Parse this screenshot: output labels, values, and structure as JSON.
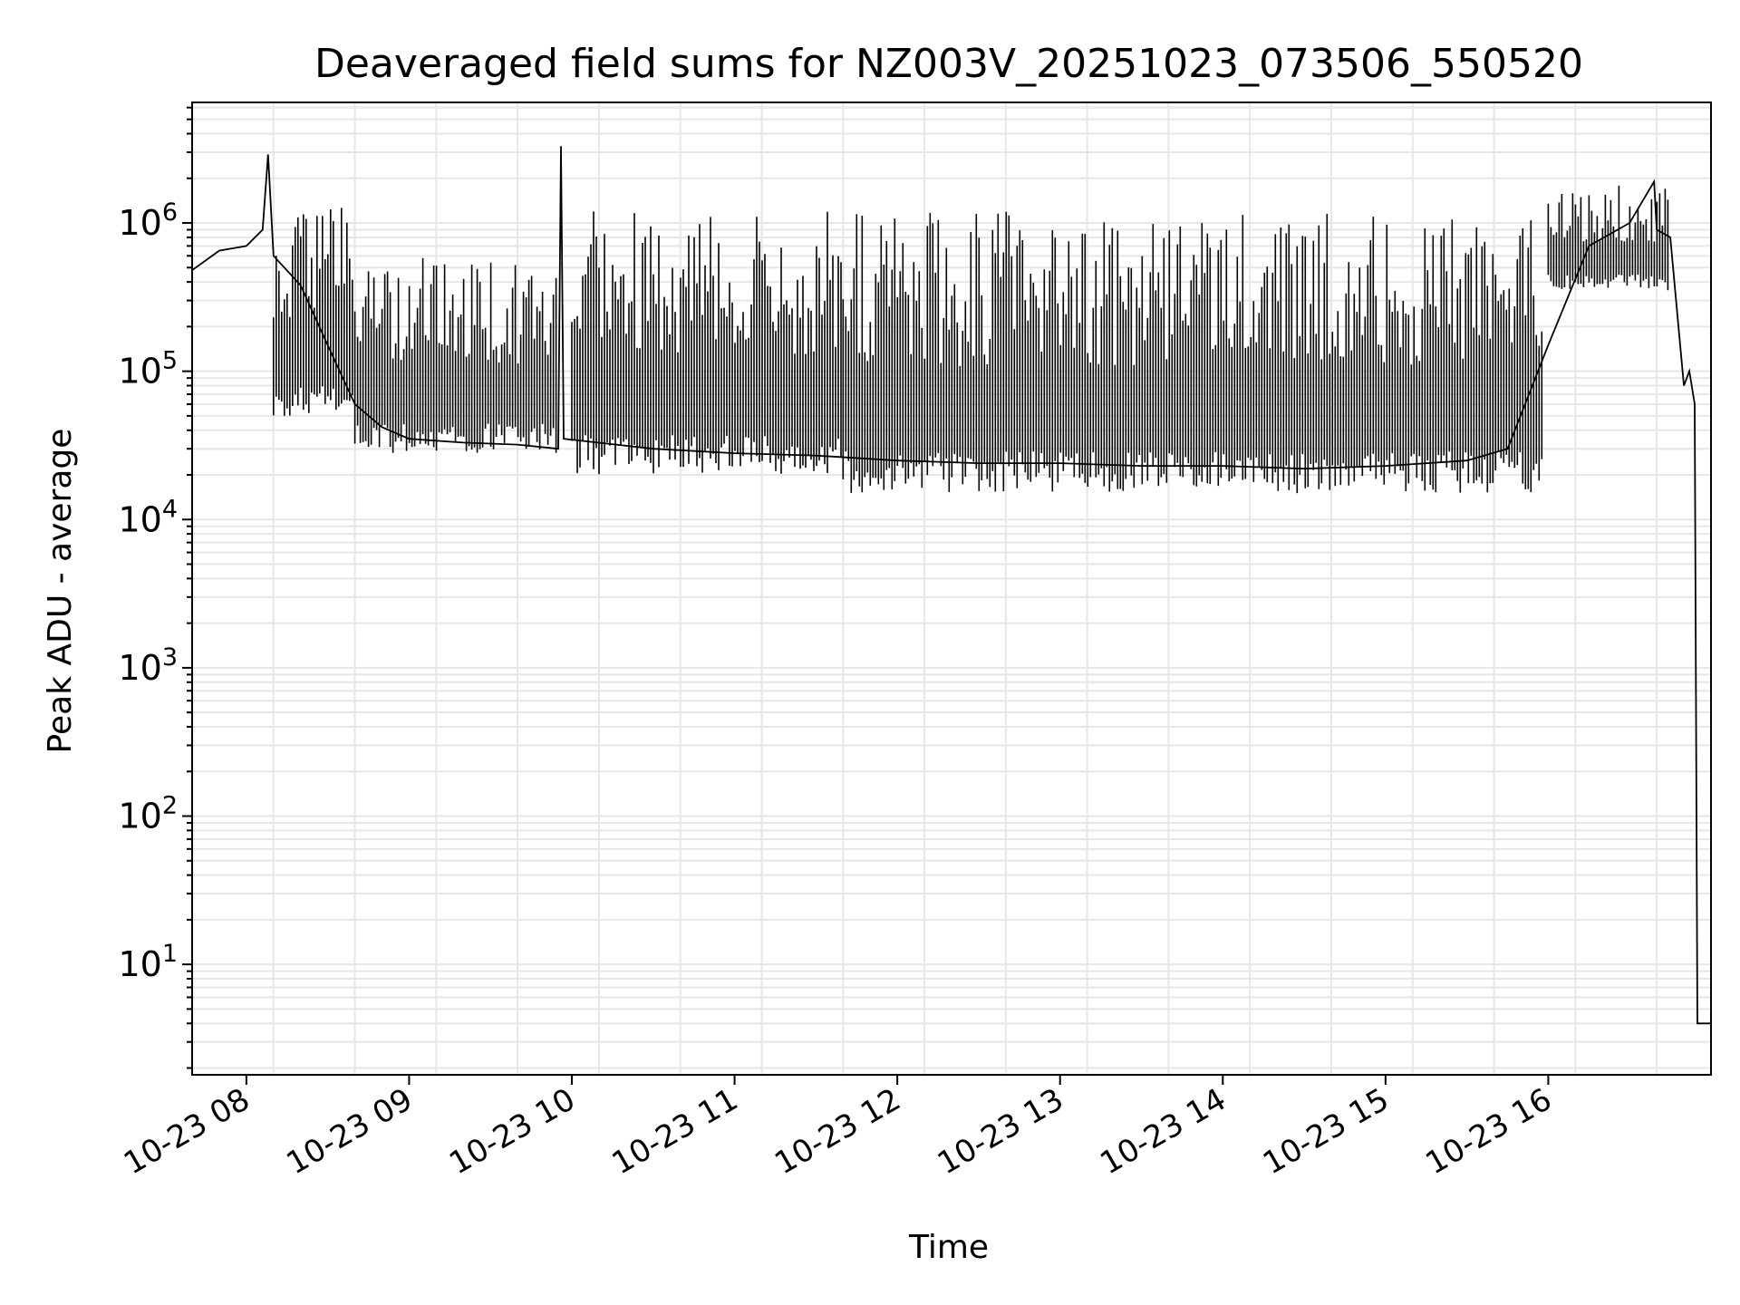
{
  "chart_data": {
    "type": "line",
    "title": "Deaveraged field sums for NZ003V_20251023_073506_550520",
    "xlabel": "Time",
    "ylabel": "Peak ADU - average",
    "yscale": "log",
    "grid": true,
    "x_range": [
      "2025-10-23T07:40",
      "2025-10-23T17:00"
    ],
    "ylim": [
      1.8,
      6500000
    ],
    "x_ticks": [
      {
        "time": "2025-10-23T08:00",
        "label": "10-23 08"
      },
      {
        "time": "2025-10-23T09:00",
        "label": "10-23 09"
      },
      {
        "time": "2025-10-23T10:00",
        "label": "10-23 10"
      },
      {
        "time": "2025-10-23T11:00",
        "label": "10-23 11"
      },
      {
        "time": "2025-10-23T12:00",
        "label": "10-23 12"
      },
      {
        "time": "2025-10-23T13:00",
        "label": "10-23 13"
      },
      {
        "time": "2025-10-23T14:00",
        "label": "10-23 14"
      },
      {
        "time": "2025-10-23T15:00",
        "label": "10-23 15"
      },
      {
        "time": "2025-10-23T16:00",
        "label": "10-23 16"
      }
    ],
    "y_ticks": [
      {
        "value": 10,
        "base": "10",
        "exp": "1"
      },
      {
        "value": 100,
        "base": "10",
        "exp": "2"
      },
      {
        "value": 1000,
        "base": "10",
        "exp": "3"
      },
      {
        "value": 10000,
        "base": "10",
        "exp": "4"
      },
      {
        "value": 100000,
        "base": "10",
        "exp": "5"
      },
      {
        "value": 1000000,
        "base": "10",
        "exp": "6"
      }
    ],
    "series_color": "#000000",
    "series": [
      {
        "points": [
          {
            "t": "2025-10-23T07:40",
            "y": 480000
          },
          {
            "t": "2025-10-23T07:50",
            "y": 650000
          },
          {
            "t": "2025-10-23T08:00",
            "y": 700000
          },
          {
            "t": "2025-10-23T08:06",
            "y": 900000
          },
          {
            "t": "2025-10-23T08:08",
            "y": 2900000
          },
          {
            "t": "2025-10-23T08:10",
            "y": 600000
          },
          {
            "t": "2025-10-23T08:20",
            "y": 380000
          },
          {
            "t": "2025-10-23T08:30",
            "y": 150000
          },
          {
            "t": "2025-10-23T08:40",
            "y": 60000
          },
          {
            "t": "2025-10-23T08:50",
            "y": 42000
          },
          {
            "t": "2025-10-23T09:00",
            "y": 35000
          },
          {
            "t": "2025-10-23T09:20",
            "y": 33000
          },
          {
            "t": "2025-10-23T09:40",
            "y": 32000
          },
          {
            "t": "2025-10-23T09:55",
            "y": 30000
          },
          {
            "t": "2025-10-23T09:56",
            "y": 3300000
          },
          {
            "t": "2025-10-23T09:57",
            "y": 35000
          },
          {
            "t": "2025-10-23T10:30",
            "y": 30000
          },
          {
            "t": "2025-10-23T11:00",
            "y": 28000
          },
          {
            "t": "2025-10-23T11:30",
            "y": 27000
          },
          {
            "t": "2025-10-23T12:00",
            "y": 25000
          },
          {
            "t": "2025-10-23T12:30",
            "y": 24000
          },
          {
            "t": "2025-10-23T13:00",
            "y": 24000
          },
          {
            "t": "2025-10-23T13:30",
            "y": 23000
          },
          {
            "t": "2025-10-23T14:00",
            "y": 23000
          },
          {
            "t": "2025-10-23T14:30",
            "y": 22000
          },
          {
            "t": "2025-10-23T15:00",
            "y": 23000
          },
          {
            "t": "2025-10-23T15:30",
            "y": 25000
          },
          {
            "t": "2025-10-23T15:45",
            "y": 30000
          },
          {
            "t": "2025-10-23T16:00",
            "y": 150000
          },
          {
            "t": "2025-10-23T16:15",
            "y": 700000
          },
          {
            "t": "2025-10-23T16:30",
            "y": 1000000
          },
          {
            "t": "2025-10-23T16:39",
            "y": 1900000
          },
          {
            "t": "2025-10-23T16:40",
            "y": 900000
          },
          {
            "t": "2025-10-23T16:45",
            "y": 800000
          },
          {
            "t": "2025-10-23T16:48",
            "y": 200000
          },
          {
            "t": "2025-10-23T16:50",
            "y": 80000
          },
          {
            "t": "2025-10-23T16:52",
            "y": 100000
          },
          {
            "t": "2025-10-23T16:54",
            "y": 60000
          },
          {
            "t": "2025-10-23T16:55",
            "y": 4
          },
          {
            "t": "2025-10-23T17:00",
            "y": 4
          }
        ],
        "envelope": [
          {
            "start": "2025-10-23T08:10",
            "end": "2025-10-23T08:40",
            "low": 50000,
            "high": 1300000
          },
          {
            "start": "2025-10-23T08:40",
            "end": "2025-10-23T09:55",
            "low": 28000,
            "high": 600000
          },
          {
            "start": "2025-10-23T10:00",
            "end": "2025-10-23T11:40",
            "low": 20000,
            "high": 1200000
          },
          {
            "start": "2025-10-23T11:40",
            "end": "2025-10-23T15:58",
            "low": 15000,
            "high": 1200000
          },
          {
            "start": "2025-10-23T16:00",
            "end": "2025-10-23T16:45",
            "low": 350000,
            "high": 1800000
          }
        ]
      }
    ]
  }
}
